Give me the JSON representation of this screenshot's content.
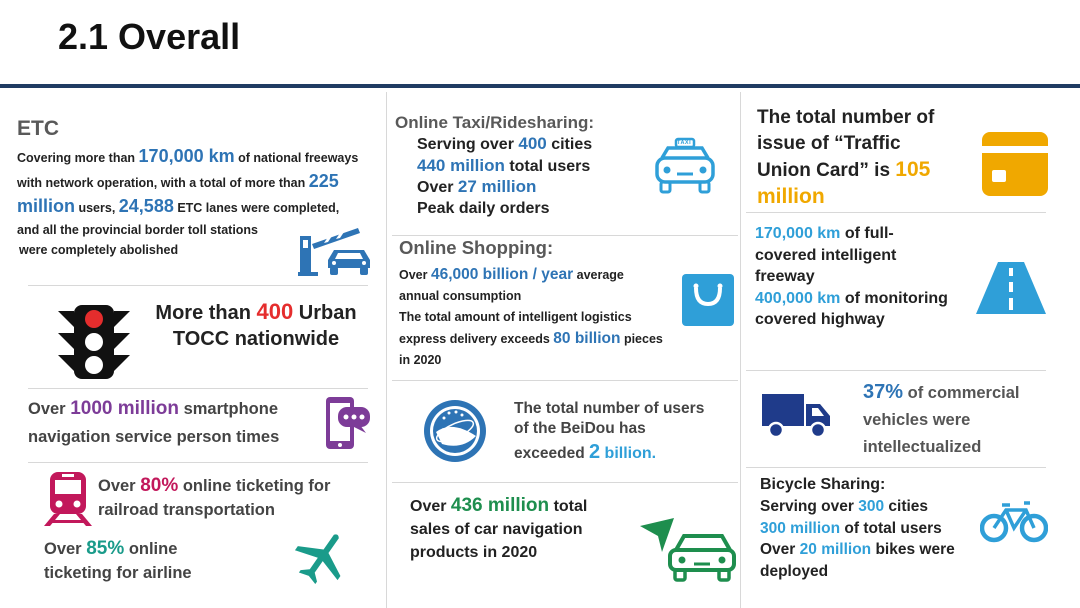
{
  "title": "2.1 Overall",
  "etc": {
    "heading": "ETC",
    "l1a": "Covering more than ",
    "l1b": "170,000 km",
    "l1c": " of national freeways",
    "l2a": "with network operation, with a total of more than ",
    "l2b": "225",
    "l3a": "million",
    "l3b": " users, ",
    "l3c": "24,588",
    "l3d": " ETC lanes were completed,",
    "l4": "and all the provincial border toll stations",
    "l5": "were completely abolished"
  },
  "tocc": {
    "a": "More than ",
    "b": "400",
    "c": " Urban",
    "d": "TOCC nationwide"
  },
  "nav": {
    "a": "Over ",
    "b": "1000 million",
    "c": " smartphone",
    "d": "navigation service person times"
  },
  "rail": {
    "a": "Over ",
    "b": "80%",
    "c": " online ticketing for",
    "d": "railroad  transportation"
  },
  "air": {
    "a": "Over ",
    "b": "85%",
    "c": " online",
    "d": "ticketing for airline"
  },
  "taxi": {
    "heading": "Online Taxi/Ridesharing:",
    "l1a": "Serving over ",
    "l1b": "400",
    "l1c": " cities",
    "l2a": "440 million",
    "l2b": " total users",
    "l3a": "Over ",
    "l3b": "27 million",
    "l4": "Peak daily orders",
    "icon_label": "TAXI"
  },
  "shop": {
    "heading": "Online Shopping:",
    "l1a": "Over ",
    "l1b": "46,000 billion / year",
    "l1c": " average",
    "l2": "annual consumption",
    "l3": "The total amount of intelligent logistics",
    "l4a": "express delivery exceeds ",
    "l4b": "80 billion",
    "l4c": " pieces",
    "l5": "in 2020"
  },
  "beidou": {
    "a": "The total number of users",
    "b": "of the BeiDou  has",
    "c": "exceeded ",
    "d": "2",
    "e": " billion."
  },
  "carnav": {
    "a": "Over ",
    "b": "436 million",
    "c": " total",
    "d": "sales of car navigation",
    "e": "products in 2020"
  },
  "card": {
    "a": "The total number of",
    "b": "issue of “Traffic",
    "c": "Union Card” is ",
    "d": "105",
    "e": "million"
  },
  "freeway": {
    "l1a": "170,000 km",
    "l1b": " of full-",
    "l2": "covered intelligent",
    "l3": "freeway",
    "l4a": "400,000 km",
    "l4b": " of monitoring",
    "l5": "covered highway"
  },
  "commercial": {
    "a": "37%",
    "b": " of commercial",
    "c": "vehicles were",
    "d": "intellectualized"
  },
  "bike": {
    "heading": "Bicycle Sharing:",
    "l1a": "Serving over ",
    "l1b": "300",
    "l1c": " cities",
    "l2a": "300 million",
    "l2b": " of total users",
    "l3a": "Over ",
    "l3b": "20 million",
    "l3c": " bikes were",
    "l4": "deployed"
  }
}
